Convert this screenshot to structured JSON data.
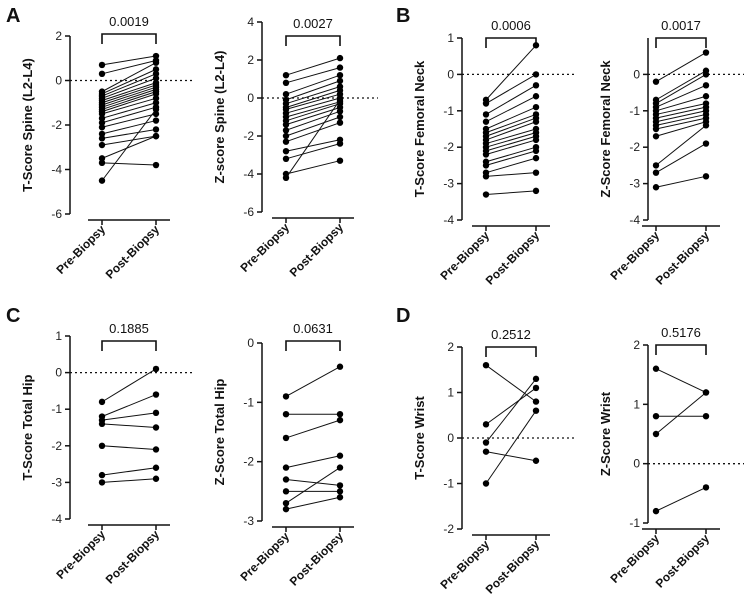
{
  "figure": {
    "panel_letters": [
      "A",
      "B",
      "C",
      "D"
    ],
    "x_category_labels": [
      "Pre-Biopsy",
      "Post-Biopsy"
    ]
  },
  "chart_data": [
    {
      "type": "paired-dot",
      "panel": "A",
      "ylabel": "T-Score Spine (L2-L4)",
      "ylim": [
        -6,
        2
      ],
      "yticks": [
        -6,
        -4,
        -2,
        0,
        2
      ],
      "reference_line": 0,
      "p_value": "0.0019",
      "categories": [
        "Pre-Biopsy",
        "Post-Biopsy"
      ],
      "pairs": [
        [
          0.7,
          1.1
        ],
        [
          0.3,
          0.9
        ],
        [
          -0.5,
          0.8
        ],
        [
          -0.6,
          0.5
        ],
        [
          -0.7,
          0.3
        ],
        [
          -0.8,
          0.1
        ],
        [
          -0.9,
          -0.1
        ],
        [
          -1.0,
          -0.2
        ],
        [
          -1.1,
          -0.3
        ],
        [
          -1.2,
          -0.4
        ],
        [
          -1.3,
          -0.5
        ],
        [
          -1.4,
          -0.6
        ],
        [
          -1.5,
          -0.8
        ],
        [
          -1.7,
          -1.0
        ],
        [
          -1.9,
          -1.2
        ],
        [
          -2.1,
          -1.5
        ],
        [
          -2.4,
          -1.8
        ],
        [
          -2.6,
          -2.2
        ],
        [
          -2.9,
          -2.5
        ],
        [
          -3.5,
          -2.5
        ],
        [
          -3.7,
          -3.8
        ],
        [
          -4.5,
          -1.3
        ]
      ]
    },
    {
      "type": "paired-dot",
      "panel": "A",
      "ylabel": "Z-score Spine (L2-L4)",
      "ylim": [
        -6,
        4
      ],
      "yticks": [
        -6,
        -4,
        -2,
        0,
        2,
        4
      ],
      "reference_line": 0,
      "p_value": "0.0027",
      "categories": [
        "Pre-Biopsy",
        "Post-Biopsy"
      ],
      "pairs": [
        [
          1.2,
          2.1
        ],
        [
          0.8,
          1.6
        ],
        [
          0.2,
          1.2
        ],
        [
          -0.1,
          0.9
        ],
        [
          -0.3,
          0.6
        ],
        [
          -0.5,
          0.4
        ],
        [
          -0.6,
          0.2
        ],
        [
          -0.8,
          0.0
        ],
        [
          -1.0,
          -0.2
        ],
        [
          -1.2,
          -0.3
        ],
        [
          -1.4,
          -0.5
        ],
        [
          -1.7,
          -0.7
        ],
        [
          -2.0,
          -1.0
        ],
        [
          -2.3,
          -1.3
        ],
        [
          -2.8,
          -2.2
        ],
        [
          -3.2,
          -2.4
        ],
        [
          -4.0,
          -3.3
        ],
        [
          -4.2,
          -0.1
        ]
      ]
    },
    {
      "type": "paired-dot",
      "panel": "B",
      "ylabel": "T-Score Femoral Neck",
      "ylim": [
        -4,
        1
      ],
      "yticks": [
        -4,
        -3,
        -2,
        -1,
        0,
        1
      ],
      "reference_line": 0,
      "p_value": "0.0006",
      "categories": [
        "Pre-Biopsy",
        "Post-Biopsy"
      ],
      "pairs": [
        [
          -0.7,
          0.8
        ],
        [
          -0.8,
          0.0
        ],
        [
          -1.1,
          -0.3
        ],
        [
          -1.3,
          -0.6
        ],
        [
          -1.5,
          -0.9
        ],
        [
          -1.6,
          -1.1
        ],
        [
          -1.7,
          -1.2
        ],
        [
          -1.8,
          -1.3
        ],
        [
          -1.9,
          -1.5
        ],
        [
          -2.0,
          -1.6
        ],
        [
          -2.1,
          -1.7
        ],
        [
          -2.2,
          -1.8
        ],
        [
          -2.4,
          -2.0
        ],
        [
          -2.5,
          -2.1
        ],
        [
          -2.7,
          -2.3
        ],
        [
          -2.8,
          -2.7
        ],
        [
          -3.3,
          -3.2
        ]
      ]
    },
    {
      "type": "paired-dot",
      "panel": "B",
      "ylabel": "Z-Score Femoral Neck",
      "ylim": [
        -4,
        1
      ],
      "yticks": [
        -4,
        -3,
        -2,
        -1,
        0
      ],
      "reference_line": 0,
      "p_value": "0.0017",
      "categories": [
        "Pre-Biopsy",
        "Post-Biopsy"
      ],
      "pairs": [
        [
          -0.2,
          0.6
        ],
        [
          -0.7,
          0.1
        ],
        [
          -0.8,
          0.0
        ],
        [
          -0.9,
          -0.3
        ],
        [
          -1.0,
          -0.6
        ],
        [
          -1.1,
          -0.8
        ],
        [
          -1.2,
          -0.9
        ],
        [
          -1.3,
          -1.0
        ],
        [
          -1.4,
          -1.1
        ],
        [
          -1.5,
          -1.2
        ],
        [
          -1.7,
          -1.3
        ],
        [
          -2.5,
          -1.4
        ],
        [
          -2.7,
          -1.9
        ],
        [
          -3.1,
          -2.8
        ]
      ]
    },
    {
      "type": "paired-dot",
      "panel": "C",
      "ylabel": "T-Score Total Hip",
      "ylim": [
        -4,
        1
      ],
      "yticks": [
        -4,
        -3,
        -2,
        -1,
        0,
        1
      ],
      "reference_line": 0,
      "p_value": "0.1885",
      "categories": [
        "Pre-Biopsy",
        "Post-Biopsy"
      ],
      "pairs": [
        [
          -0.8,
          0.1
        ],
        [
          -1.2,
          -0.6
        ],
        [
          -1.3,
          -1.1
        ],
        [
          -1.4,
          -1.5
        ],
        [
          -2.0,
          -2.1
        ],
        [
          -2.8,
          -2.6
        ],
        [
          -3.0,
          -2.9
        ]
      ]
    },
    {
      "type": "paired-dot",
      "panel": "C",
      "ylabel": "Z-Score Total Hip",
      "ylim": [
        -3,
        0
      ],
      "yticks": [
        -3,
        -2,
        -1,
        0
      ],
      "reference_line": null,
      "p_value": "0.0631",
      "categories": [
        "Pre-Biopsy",
        "Post-Biopsy"
      ],
      "pairs": [
        [
          -0.9,
          -0.4
        ],
        [
          -1.2,
          -1.2
        ],
        [
          -1.6,
          -1.3
        ],
        [
          -2.1,
          -1.9
        ],
        [
          -2.3,
          -2.4
        ],
        [
          -2.5,
          -2.5
        ],
        [
          -2.7,
          -2.1
        ],
        [
          -2.8,
          -2.6
        ]
      ]
    },
    {
      "type": "paired-dot",
      "panel": "D",
      "ylabel": "T-Score Wrist",
      "ylim": [
        -2,
        2
      ],
      "yticks": [
        -2,
        -1,
        0,
        1,
        2
      ],
      "reference_line": 0,
      "p_value": "0.2512",
      "categories": [
        "Pre-Biopsy",
        "Post-Biopsy"
      ],
      "pairs": [
        [
          1.6,
          0.8
        ],
        [
          0.3,
          1.1
        ],
        [
          -0.1,
          1.3
        ],
        [
          -0.3,
          -0.5
        ],
        [
          -1.0,
          0.6
        ]
      ]
    },
    {
      "type": "paired-dot",
      "panel": "D",
      "ylabel": "Z-Score Wrist",
      "ylim": [
        -1,
        2
      ],
      "yticks": [
        -1,
        0,
        1,
        2
      ],
      "reference_line": 0,
      "p_value": "0.5176",
      "categories": [
        "Pre-Biopsy",
        "Post-Biopsy"
      ],
      "pairs": [
        [
          1.6,
          1.2
        ],
        [
          0.8,
          0.8
        ],
        [
          0.5,
          1.2
        ],
        [
          -0.8,
          -0.4
        ]
      ]
    }
  ]
}
